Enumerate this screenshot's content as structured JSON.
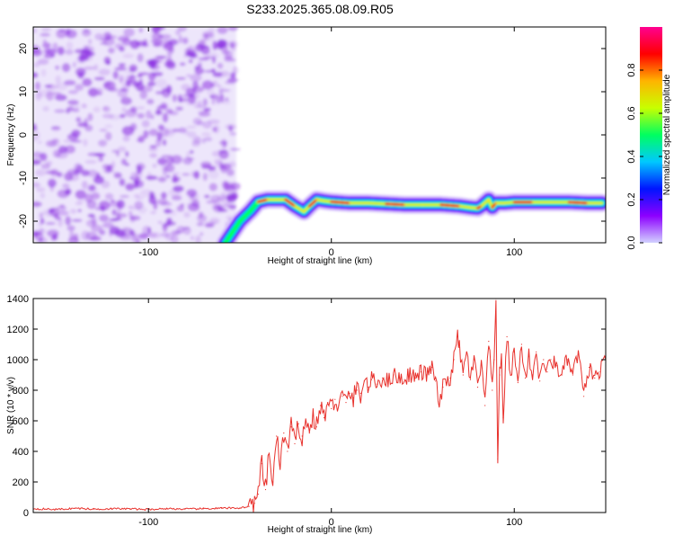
{
  "title": "S233.2025.365.08.09.R05",
  "colors": {
    "noise": "#8a2be2",
    "snr_line": "#e8322d",
    "colorbar_stops": [
      "#d2d2ff",
      "#8c00ff",
      "#0014ff",
      "#00c8ff",
      "#00ff60",
      "#c8ff00",
      "#ffb400",
      "#ff0000",
      "#ff0090"
    ]
  },
  "chart_data": [
    {
      "type": "heatmap",
      "title": "S233.2025.365.08.09.R05",
      "xlabel": "Height of straight line (km)",
      "ylabel": "Frequency (Hz)",
      "xlim": [
        -163,
        150
      ],
      "ylim": [
        -25,
        25
      ],
      "x_ticks": [
        -100,
        0,
        100
      ],
      "x_tick_labels": [
        "-100",
        "0",
        "100"
      ],
      "y_ticks": [
        -20,
        -10,
        0,
        10,
        20
      ],
      "y_tick_labels": [
        "-20",
        "-10",
        "0",
        "10",
        "20"
      ],
      "noise_region_x": [
        -163,
        -52
      ],
      "ridge_track": {
        "x": [
          -58,
          -50,
          -44,
          -40,
          -35,
          -30,
          -25,
          -20,
          -15,
          -12,
          -8,
          -4,
          0,
          10,
          20,
          30,
          40,
          50,
          60,
          70,
          75,
          80,
          82,
          86,
          88,
          90,
          95,
          100,
          110,
          120,
          130,
          140,
          148
        ],
        "freq_hz": [
          -25,
          -20,
          -17.5,
          -15.5,
          -15,
          -15,
          -15,
          -16.5,
          -17.8,
          -16.5,
          -15,
          -15.3,
          -15.5,
          -15.8,
          -15.8,
          -16,
          -16.2,
          -16.2,
          -16.2,
          -16.5,
          -16.8,
          -17,
          -16.5,
          -15,
          -16.8,
          -15.8,
          -15.8,
          -15.6,
          -15.6,
          -15.6,
          -15.6,
          -15.8,
          -15.8
        ]
      },
      "colorbar": {
        "label": "Normalized spectral amplitude",
        "range": [
          0,
          1
        ],
        "ticks": [
          0.0,
          0.2,
          0.4,
          0.6,
          0.8
        ],
        "tick_labels": [
          "0.0",
          "0.2",
          "0.4",
          "0.6",
          "0.8"
        ]
      }
    },
    {
      "type": "line",
      "xlabel": "Height of straight line (km)",
      "ylabel": "SNR (10 * v/v)",
      "xlim": [
        -163,
        150
      ],
      "ylim": [
        0,
        1400
      ],
      "x_ticks": [
        -100,
        0,
        100
      ],
      "x_tick_labels": [
        "-100",
        "0",
        "100"
      ],
      "y_ticks": [
        0,
        200,
        400,
        600,
        800,
        1000,
        1200,
        1400
      ],
      "y_tick_labels": [
        "0",
        "200",
        "400",
        "600",
        "800",
        "1000",
        "1200",
        "1400"
      ],
      "series": [
        {
          "name": "SNR",
          "x": [
            -163,
            -150,
            -140,
            -130,
            -120,
            -110,
            -100,
            -90,
            -80,
            -70,
            -60,
            -50,
            -45,
            -42,
            -40,
            -38,
            -36,
            -34,
            -32,
            -30,
            -28,
            -26,
            -24,
            -22,
            -20,
            -18,
            -16,
            -14,
            -12,
            -10,
            -8,
            -6,
            -4,
            -2,
            0,
            2,
            4,
            6,
            8,
            10,
            12,
            14,
            16,
            18,
            20,
            22,
            25,
            28,
            31,
            34,
            37,
            40,
            43,
            46,
            49,
            52,
            55,
            57,
            59,
            61,
            63,
            65,
            67,
            69,
            70,
            72,
            74,
            76,
            78,
            80,
            82,
            84,
            86,
            88,
            89,
            90,
            91,
            92,
            93,
            94,
            96,
            98,
            100,
            102,
            104,
            106,
            108,
            110,
            112,
            114,
            116,
            118,
            120,
            123,
            126,
            129,
            132,
            135,
            138,
            141,
            144,
            147,
            150
          ],
          "values": [
            25,
            20,
            28,
            22,
            25,
            24,
            20,
            26,
            22,
            25,
            28,
            30,
            40,
            60,
            120,
            320,
            150,
            380,
            200,
            500,
            300,
            520,
            400,
            560,
            450,
            580,
            500,
            600,
            520,
            640,
            560,
            700,
            620,
            720,
            680,
            740,
            700,
            760,
            720,
            780,
            750,
            800,
            780,
            860,
            820,
            870,
            840,
            880,
            860,
            900,
            880,
            870,
            910,
            880,
            920,
            900,
            950,
            860,
            700,
            820,
            850,
            880,
            1000,
            1150,
            1080,
            900,
            1050,
            870,
            1000,
            820,
            980,
            700,
            1120,
            800,
            1000,
            1400,
            350,
            900,
            1000,
            620,
            1150,
            900,
            1050,
            850,
            1100,
            880,
            1020,
            900,
            1050,
            860,
            1000,
            920,
            1000,
            960,
            900,
            1000,
            900,
            1050,
            760,
            950,
            880,
            920,
            1000
          ]
        }
      ]
    }
  ]
}
